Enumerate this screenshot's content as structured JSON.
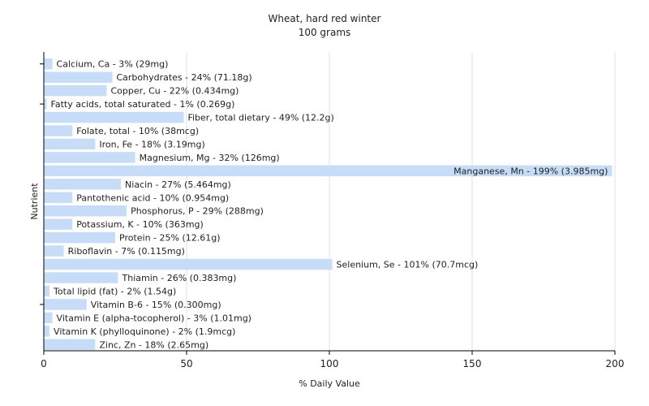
{
  "chart_data": {
    "type": "bar",
    "orientation": "horizontal",
    "title": "Wheat, hard red winter",
    "subtitle": "100 grams",
    "xlabel": "% Daily Value",
    "ylabel": "Nutrient",
    "xlim": [
      0,
      200
    ],
    "xticks": [
      0,
      50,
      100,
      150,
      200
    ],
    "grid": true,
    "bar_color": "#c6dcf7",
    "categories": [
      "Calcium, Ca",
      "Carbohydrates",
      "Copper, Cu",
      "Fatty acids, total saturated",
      "Fiber, total dietary",
      "Folate, total",
      "Iron, Fe",
      "Magnesium, Mg",
      "Manganese, Mn",
      "Niacin",
      "Pantothenic acid",
      "Phosphorus, P",
      "Potassium, K",
      "Protein",
      "Riboflavin",
      "Selenium, Se",
      "Thiamin",
      "Total lipid (fat)",
      "Vitamin B-6",
      "Vitamin E (alpha-tocopherol)",
      "Vitamin K (phylloquinone)",
      "Zinc, Zn"
    ],
    "values": [
      3,
      24,
      22,
      1,
      49,
      10,
      18,
      32,
      199,
      27,
      10,
      29,
      10,
      25,
      7,
      101,
      26,
      2,
      15,
      3,
      2,
      18
    ],
    "labels": [
      "Calcium, Ca - 3% (29mg)",
      "Carbohydrates - 24% (71.18g)",
      "Copper, Cu - 22% (0.434mg)",
      "Fatty acids, total saturated - 1% (0.269g)",
      "Fiber, total dietary - 49% (12.2g)",
      "Folate, total - 10% (38mcg)",
      "Iron, Fe - 18% (3.19mg)",
      "Magnesium, Mg - 32% (126mg)",
      "Manganese, Mn - 199% (3.985mg)",
      "Niacin - 27% (5.464mg)",
      "Pantothenic acid - 10% (0.954mg)",
      "Phosphorus, P - 29% (288mg)",
      "Potassium, K - 10% (363mg)",
      "Protein - 25% (12.61g)",
      "Riboflavin - 7% (0.115mg)",
      "Selenium, Se - 101% (70.7mcg)",
      "Thiamin - 26% (0.383mg)",
      "Total lipid (fat) - 2% (1.54g)",
      "Vitamin B-6 - 15% (0.300mg)",
      "Vitamin E (alpha-tocopherol) - 3% (1.01mg)",
      "Vitamin K (phylloquinone) - 2% (1.9mcg)",
      "Zinc, Zn - 18% (2.65mg)"
    ]
  }
}
